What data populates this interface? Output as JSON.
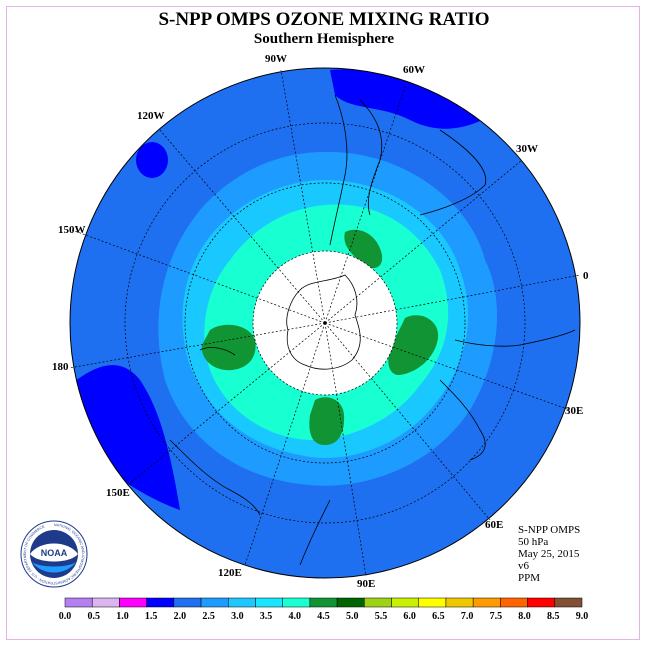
{
  "title": "S-NPP OMPS OZONE MIXING RATIO",
  "subtitle": "Southern Hemisphere",
  "longitude_labels": [
    "90W",
    "60W",
    "120W",
    "30W",
    "150W",
    "0",
    "180",
    "30E",
    "150E",
    "60E",
    "120E",
    "90E"
  ],
  "info": {
    "instrument": "S-NPP OMPS",
    "level": "50 hPa",
    "date": "May 25, 2015",
    "version": "v6",
    "units": "PPM"
  },
  "logo": {
    "text": "NOAA",
    "ring_text": "NATIONAL OCEANIC AND ATMOSPHERIC ADMINISTRATION · U.S. DEPARTMENT OF COMMERCE"
  },
  "colorbar": {
    "ticks": [
      "0.0",
      "0.5",
      "1.0",
      "1.5",
      "2.0",
      "2.5",
      "3.0",
      "3.5",
      "4.0",
      "4.5",
      "5.0",
      "5.5",
      "6.0",
      "6.5",
      "7.0",
      "7.5",
      "8.0",
      "8.5",
      "9.0"
    ],
    "colors": [
      "#b47ff0",
      "#dcb4f0",
      "#ff00ff",
      "#0000ff",
      "#1e70f0",
      "#1e9bff",
      "#1ec8ff",
      "#18e6ff",
      "#18ffd2",
      "#119433",
      "#006400",
      "#9ed214",
      "#c8f000",
      "#ffff00",
      "#f0c800",
      "#ff9b00",
      "#ff6400",
      "#ff0000",
      "#825032"
    ]
  },
  "map_colors": {
    "background": "#1e70f0",
    "low": "#0000ff",
    "band_3": "#1e9bff",
    "band_35": "#18c8ff",
    "band_4": "#18ffd2",
    "band_45": "#119433",
    "polar_night": "#ffffff",
    "coast": "#000000"
  }
}
